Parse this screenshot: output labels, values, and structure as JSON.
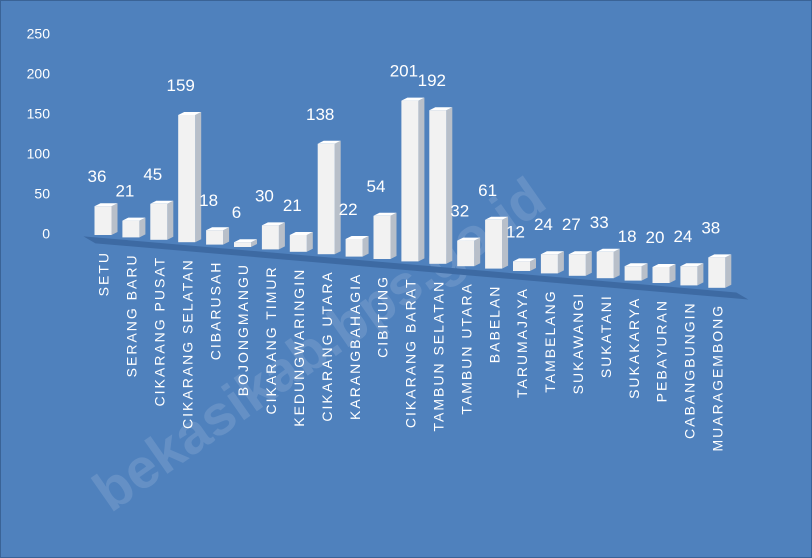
{
  "chart_data": {
    "type": "bar",
    "categories": [
      "SETU",
      "SERANG BARU",
      "CIKARANG PUSAT",
      "CIKARANG SELATAN",
      "CIBARUSAH",
      "BOJONGMANGU",
      "CIKARANG TIMUR",
      "KEDUNGWARINGIN",
      "CIKARANG UTARA",
      "KARANGBAHAGIA",
      "CIBITUNG",
      "CIKARANG BARAT",
      "TAMBUN SELATAN",
      "TAMBUN UTARA",
      "BABELAN",
      "TARUMAJAYA",
      "TAMBELANG",
      "SUKAWANGI",
      "SUKATANI",
      "SUKAKARYA",
      "PEBAYURAN",
      "CABANGBUNGIN",
      "MUARAGEMBONG"
    ],
    "values": [
      36,
      21,
      45,
      159,
      18,
      6,
      30,
      21,
      138,
      22,
      54,
      201,
      192,
      32,
      61,
      12,
      24,
      27,
      33,
      18,
      20,
      24,
      38
    ],
    "color": "#f2f2f2",
    "ylim": [
      0,
      250
    ],
    "yticks": [
      0,
      50,
      100,
      150,
      200,
      250
    ],
    "grid": false,
    "watermark": "bekasikab.bps.go.id"
  }
}
